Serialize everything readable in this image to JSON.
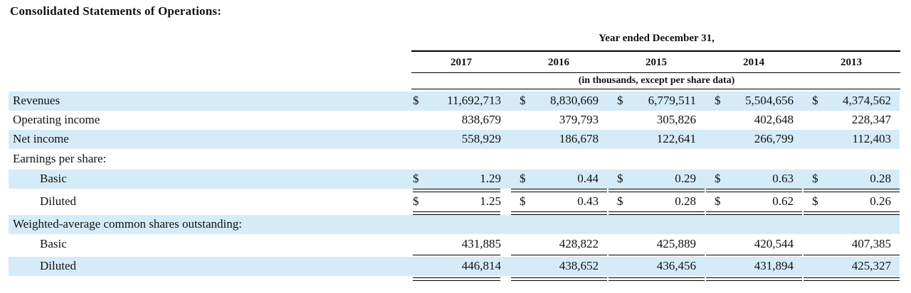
{
  "title": "Consolidated Statements of Operations:",
  "header": {
    "period": "Year ended December 31,",
    "years": [
      "2017",
      "2016",
      "2015",
      "2014",
      "2013"
    ],
    "unit_note": "(in thousands, except per share data)"
  },
  "rows": [
    {
      "label": "Revenues",
      "currency": "$",
      "values": [
        "11,692,713",
        "8,830,669",
        "6,779,511",
        "5,504,656",
        "4,374,562"
      ]
    },
    {
      "label": "Operating income",
      "currency": "",
      "values": [
        "838,679",
        "379,793",
        "305,826",
        "402,648",
        "228,347"
      ]
    },
    {
      "label": "Net income",
      "currency": "",
      "values": [
        "558,929",
        "186,678",
        "122,641",
        "266,799",
        "112,403"
      ]
    },
    {
      "label": "Earnings per share:",
      "currency": "",
      "values": []
    },
    {
      "label": "Basic",
      "currency": "$",
      "values": [
        "1.29",
        "0.44",
        "0.29",
        "0.63",
        "0.28"
      ]
    },
    {
      "label": "Diluted",
      "currency": "$",
      "values": [
        "1.25",
        "0.43",
        "0.28",
        "0.62",
        "0.26"
      ]
    },
    {
      "label": "Weighted-average common shares outstanding:",
      "currency": "",
      "values": []
    },
    {
      "label": "Basic",
      "currency": "",
      "values": [
        "431,885",
        "428,822",
        "425,889",
        "420,544",
        "407,385"
      ]
    },
    {
      "label": "Diluted",
      "currency": "",
      "values": [
        "446,814",
        "438,652",
        "436,456",
        "431,894",
        "425,327"
      ]
    }
  ]
}
